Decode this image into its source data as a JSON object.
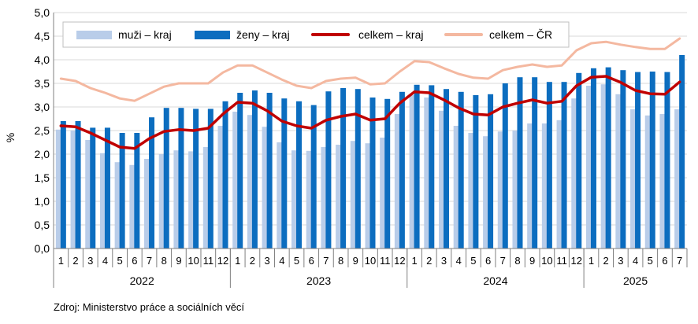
{
  "chart_data": {
    "type": "bar",
    "ylabel": "%",
    "ylim": [
      0,
      5
    ],
    "yticks": [
      "0,0",
      "0,5",
      "1,0",
      "1,5",
      "2,0",
      "2,5",
      "3,0",
      "3,5",
      "4,0",
      "4,5",
      "5,0"
    ],
    "years": [
      {
        "label": "2022",
        "months": 12
      },
      {
        "label": "2023",
        "months": 12
      },
      {
        "label": "2024",
        "months": 12
      },
      {
        "label": "2025",
        "months": 7
      }
    ],
    "categories": [
      "1",
      "2",
      "3",
      "4",
      "5",
      "6",
      "7",
      "8",
      "9",
      "10",
      "11",
      "12",
      "1",
      "2",
      "3",
      "4",
      "5",
      "6",
      "7",
      "8",
      "9",
      "10",
      "11",
      "12",
      "1",
      "2",
      "3",
      "4",
      "5",
      "6",
      "7",
      "8",
      "9",
      "10",
      "11",
      "12",
      "1",
      "2",
      "3",
      "4",
      "5",
      "6",
      "7"
    ],
    "legend_placement": "top",
    "grid": true,
    "series": [
      {
        "name": "muži – kraj",
        "kind": "bar",
        "color": "#b9cde9",
        "values": [
          2.52,
          2.5,
          2.3,
          2.02,
          1.83,
          1.77,
          1.9,
          2.0,
          2.08,
          2.06,
          2.15,
          2.6,
          2.9,
          2.83,
          2.58,
          2.25,
          2.08,
          2.07,
          2.15,
          2.2,
          2.28,
          2.23,
          2.35,
          2.85,
          3.25,
          3.2,
          2.92,
          2.6,
          2.45,
          2.38,
          2.48,
          2.5,
          2.65,
          2.65,
          2.72,
          3.18,
          3.45,
          3.48,
          3.27,
          2.95,
          2.82,
          2.85,
          2.95
        ]
      },
      {
        "name": "ženy – kraj",
        "kind": "bar",
        "color": "#0c6dbf",
        "values": [
          2.7,
          2.7,
          2.56,
          2.56,
          2.45,
          2.45,
          2.78,
          2.98,
          2.98,
          2.96,
          2.96,
          3.12,
          3.3,
          3.35,
          3.3,
          3.18,
          3.12,
          3.04,
          3.33,
          3.4,
          3.38,
          3.2,
          3.17,
          3.32,
          3.47,
          3.46,
          3.38,
          3.32,
          3.25,
          3.27,
          3.5,
          3.63,
          3.63,
          3.53,
          3.53,
          3.72,
          3.82,
          3.84,
          3.78,
          3.74,
          3.75,
          3.74,
          4.1
        ]
      },
      {
        "name": "celkem – kraj",
        "kind": "line",
        "color": "#c00000",
        "values": [
          2.6,
          2.58,
          2.45,
          2.3,
          2.15,
          2.12,
          2.33,
          2.48,
          2.52,
          2.5,
          2.55,
          2.85,
          3.1,
          3.08,
          2.92,
          2.7,
          2.6,
          2.55,
          2.72,
          2.8,
          2.85,
          2.72,
          2.75,
          3.08,
          3.32,
          3.3,
          3.15,
          2.98,
          2.85,
          2.83,
          3.0,
          3.08,
          3.15,
          3.08,
          3.12,
          3.45,
          3.63,
          3.65,
          3.52,
          3.35,
          3.28,
          3.27,
          3.53
        ]
      },
      {
        "name": "celkem – ČR",
        "kind": "line",
        "color": "#f4b8a0",
        "values": [
          3.6,
          3.55,
          3.4,
          3.3,
          3.18,
          3.13,
          3.28,
          3.43,
          3.5,
          3.5,
          3.5,
          3.73,
          3.88,
          3.88,
          3.73,
          3.58,
          3.45,
          3.4,
          3.55,
          3.6,
          3.62,
          3.48,
          3.5,
          3.75,
          3.97,
          3.95,
          3.82,
          3.7,
          3.62,
          3.6,
          3.78,
          3.85,
          3.9,
          3.85,
          3.88,
          4.2,
          4.35,
          4.38,
          4.32,
          4.27,
          4.23,
          4.23,
          4.45
        ]
      }
    ]
  },
  "source": "Zdroj: Ministerstvo práce a sociálních věcí"
}
